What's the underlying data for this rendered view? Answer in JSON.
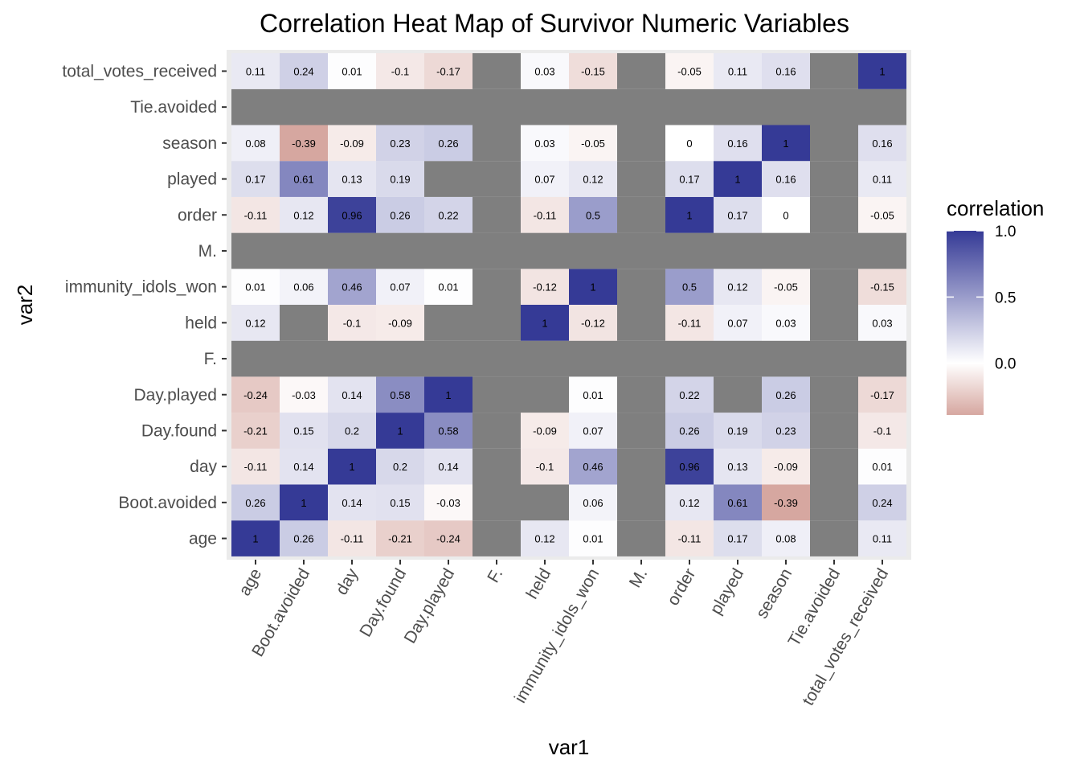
{
  "chart_data": {
    "type": "heatmap",
    "title": "Correlation Heat Map of Survivor Numeric Variables",
    "xlabel": "var1",
    "ylabel": "var2",
    "x_categories": [
      "age",
      "Boot.avoided",
      "day",
      "Day.found",
      "Day.played",
      "F.",
      "held",
      "immunity_idols_won",
      "M.",
      "order",
      "played",
      "season",
      "Tie.avoided",
      "total_votes_received"
    ],
    "y_categories": [
      "age",
      "Boot.avoided",
      "day",
      "Day.found",
      "Day.played",
      "F.",
      "held",
      "immunity_idols_won",
      "M.",
      "order",
      "played",
      "season",
      "Tie.avoided",
      "total_votes_received"
    ],
    "values": [
      [
        1,
        0.26,
        -0.11,
        -0.21,
        -0.24,
        null,
        0.12,
        0.01,
        null,
        -0.11,
        0.17,
        0.08,
        null,
        0.11
      ],
      [
        0.26,
        1,
        0.14,
        0.15,
        -0.03,
        null,
        null,
        0.06,
        null,
        0.12,
        0.61,
        -0.39,
        null,
        0.24
      ],
      [
        -0.11,
        0.14,
        1,
        0.2,
        0.14,
        null,
        -0.1,
        0.46,
        null,
        0.96,
        0.13,
        -0.09,
        null,
        0.01
      ],
      [
        -0.21,
        0.15,
        0.2,
        1,
        0.58,
        null,
        -0.09,
        0.07,
        null,
        0.26,
        0.19,
        0.23,
        null,
        -0.1
      ],
      [
        -0.24,
        -0.03,
        0.14,
        0.58,
        1,
        null,
        null,
        0.01,
        null,
        0.22,
        null,
        0.26,
        null,
        -0.17
      ],
      [
        null,
        null,
        null,
        null,
        null,
        null,
        null,
        null,
        null,
        null,
        null,
        null,
        null,
        null
      ],
      [
        0.12,
        null,
        -0.1,
        -0.09,
        null,
        null,
        1,
        -0.12,
        null,
        -0.11,
        0.07,
        0.03,
        null,
        0.03
      ],
      [
        0.01,
        0.06,
        0.46,
        0.07,
        0.01,
        null,
        -0.12,
        1,
        null,
        0.5,
        0.12,
        -0.05,
        null,
        -0.15
      ],
      [
        null,
        null,
        null,
        null,
        null,
        null,
        null,
        null,
        null,
        null,
        null,
        null,
        null,
        null
      ],
      [
        -0.11,
        0.12,
        0.96,
        0.26,
        0.22,
        null,
        -0.11,
        0.5,
        null,
        1,
        0.17,
        0,
        null,
        -0.05
      ],
      [
        0.17,
        0.61,
        0.13,
        0.19,
        null,
        null,
        0.07,
        0.12,
        null,
        0.17,
        1,
        0.16,
        null,
        0.11
      ],
      [
        0.08,
        -0.39,
        -0.09,
        0.23,
        0.26,
        null,
        0.03,
        -0.05,
        null,
        0,
        0.16,
        1,
        null,
        0.16
      ],
      [
        null,
        null,
        null,
        null,
        null,
        null,
        null,
        null,
        null,
        null,
        null,
        null,
        null,
        null
      ],
      [
        0.11,
        0.24,
        0.01,
        -0.1,
        -0.17,
        null,
        0.03,
        -0.15,
        null,
        -0.05,
        0.11,
        0.16,
        null,
        1
      ]
    ],
    "missing_color": "#7f7f7f",
    "panel_background": "#ebebeb",
    "legend": {
      "title": "correlation",
      "ticks": [
        "1.0",
        "0.5",
        "0.0"
      ],
      "tick_values": [
        1.0,
        0.5,
        0.0
      ],
      "limits": [
        -0.39,
        1.0
      ],
      "low_color": "#d6a7a0",
      "mid_color": "#ffffff",
      "high_color": "#353a96",
      "placement": "right"
    }
  }
}
